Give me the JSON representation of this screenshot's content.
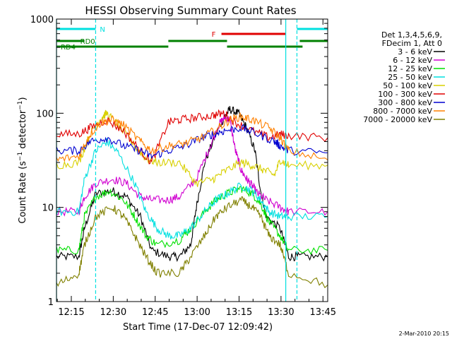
{
  "chart_data": {
    "type": "line",
    "title": "HESSI Observing Summary Count Rates",
    "xlabel": "Start Time (17-Dec-07 12:09:42)",
    "ylabel_prefix": "Count Rate (s",
    "ylabel_exp1": "−1",
    "ylabel_mid": " detector",
    "ylabel_exp2": "−1",
    "ylabel_suffix": ")",
    "y_scale": "log",
    "ylim": [
      1,
      1000
    ],
    "xlim_min": [
      0,
      97
    ],
    "x_ticks": [
      {
        "min": 5.3,
        "label": "12:15"
      },
      {
        "min": 20.3,
        "label": "12:30"
      },
      {
        "min": 35.3,
        "label": "12:45"
      },
      {
        "min": 50.3,
        "label": "13:00"
      },
      {
        "min": 65.3,
        "label": "13:15"
      },
      {
        "min": 80.3,
        "label": "13:30"
      },
      {
        "min": 95.3,
        "label": "13:45"
      }
    ],
    "y_ticks": [
      {
        "value": 1,
        "label": "1"
      },
      {
        "value": 10,
        "label": "10"
      },
      {
        "value": 100,
        "label": "100"
      },
      {
        "value": 1000,
        "label": "1000"
      }
    ],
    "legend_header": [
      "Det 1,3,4,5,6,9,",
      "FDecim 1, Att 0"
    ],
    "series": [
      {
        "name": "3 - 6 keV",
        "color": "#000000",
        "points": [
          [
            0,
            3
          ],
          [
            8,
            3
          ],
          [
            10,
            6
          ],
          [
            14,
            14
          ],
          [
            20,
            15
          ],
          [
            25,
            13
          ],
          [
            30,
            8
          ],
          [
            34,
            3.5
          ],
          [
            40,
            3
          ],
          [
            44,
            3
          ],
          [
            48,
            4
          ],
          [
            50,
            10
          ],
          [
            53,
            30
          ],
          [
            57,
            60
          ],
          [
            60,
            90
          ],
          [
            62,
            110
          ],
          [
            65,
            100
          ],
          [
            68,
            70
          ],
          [
            71,
            40
          ],
          [
            73,
            15
          ],
          [
            75,
            8
          ],
          [
            80,
            6
          ],
          [
            83,
            3
          ],
          [
            87,
            3
          ],
          [
            97,
            3
          ]
        ]
      },
      {
        "name": "6 - 12 keV",
        "color": "#d000d0",
        "points": [
          [
            0,
            9
          ],
          [
            8,
            9
          ],
          [
            10,
            13
          ],
          [
            14,
            18
          ],
          [
            20,
            20
          ],
          [
            25,
            18
          ],
          [
            30,
            13
          ],
          [
            34,
            12
          ],
          [
            40,
            12
          ],
          [
            44,
            13
          ],
          [
            50,
            20
          ],
          [
            55,
            45
          ],
          [
            58,
            75
          ],
          [
            60,
            90
          ],
          [
            62,
            85
          ],
          [
            64,
            40
          ],
          [
            66,
            25
          ],
          [
            68,
            20
          ],
          [
            70,
            17
          ],
          [
            72,
            14
          ],
          [
            75,
            12
          ],
          [
            80,
            10
          ],
          [
            83,
            9
          ],
          [
            97,
            9
          ]
        ]
      },
      {
        "name": "12 - 25 keV",
        "color": "#00e000",
        "points": [
          [
            0,
            3.5
          ],
          [
            8,
            3.5
          ],
          [
            10,
            8
          ],
          [
            14,
            13
          ],
          [
            19,
            15
          ],
          [
            24,
            12
          ],
          [
            28,
            8
          ],
          [
            32,
            5
          ],
          [
            36,
            4
          ],
          [
            44,
            4.5
          ],
          [
            48,
            6
          ],
          [
            53,
            9
          ],
          [
            57,
            12
          ],
          [
            61,
            14
          ],
          [
            66,
            16
          ],
          [
            70,
            14
          ],
          [
            73,
            11
          ],
          [
            76,
            7
          ],
          [
            80,
            5
          ],
          [
            83,
            3.5
          ],
          [
            97,
            3.5
          ]
        ]
      },
      {
        "name": "25 - 50 keV",
        "color": "#00e0e0",
        "points": [
          [
            0,
            9
          ],
          [
            8,
            9
          ],
          [
            10,
            20
          ],
          [
            14,
            40
          ],
          [
            18,
            50
          ],
          [
            22,
            38
          ],
          [
            28,
            18
          ],
          [
            32,
            9
          ],
          [
            36,
            6
          ],
          [
            40,
            5
          ],
          [
            44,
            5
          ],
          [
            48,
            6
          ],
          [
            53,
            9
          ],
          [
            57,
            12
          ],
          [
            61,
            14
          ],
          [
            66,
            17
          ],
          [
            70,
            15
          ],
          [
            73,
            12
          ],
          [
            76,
            9
          ],
          [
            80,
            8
          ],
          [
            83,
            8
          ],
          [
            97,
            8
          ]
        ]
      },
      {
        "name": "50 - 100 keV",
        "color": "#d8d000",
        "points": [
          [
            0,
            28
          ],
          [
            8,
            30
          ],
          [
            12,
            60
          ],
          [
            16,
            90
          ],
          [
            18,
            100
          ],
          [
            22,
            75
          ],
          [
            28,
            45
          ],
          [
            32,
            33
          ],
          [
            36,
            30
          ],
          [
            44,
            30
          ],
          [
            50,
            18
          ],
          [
            56,
            20
          ],
          [
            60,
            24
          ],
          [
            66,
            30
          ],
          [
            70,
            28
          ],
          [
            74,
            25
          ],
          [
            78,
            22
          ],
          [
            80,
            32
          ],
          [
            83,
            28
          ],
          [
            97,
            28
          ]
        ]
      },
      {
        "name": "100 - 300 keV",
        "color": "#e00000",
        "points": [
          [
            0,
            60
          ],
          [
            8,
            60
          ],
          [
            12,
            70
          ],
          [
            18,
            85
          ],
          [
            24,
            65
          ],
          [
            30,
            40
          ],
          [
            34,
            30
          ],
          [
            40,
            80
          ],
          [
            44,
            85
          ],
          [
            50,
            90
          ],
          [
            56,
            95
          ],
          [
            60,
            100
          ],
          [
            64,
            80
          ],
          [
            70,
            65
          ],
          [
            76,
            55
          ],
          [
            80,
            60
          ],
          [
            83,
            58
          ],
          [
            97,
            55
          ]
        ]
      },
      {
        "name": "300 - 800 keV",
        "color": "#0000d0",
        "points": [
          [
            0,
            40
          ],
          [
            8,
            40
          ],
          [
            12,
            50
          ],
          [
            18,
            55
          ],
          [
            24,
            45
          ],
          [
            30,
            40
          ],
          [
            34,
            35
          ],
          [
            40,
            40
          ],
          [
            46,
            45
          ],
          [
            52,
            55
          ],
          [
            56,
            60
          ],
          [
            60,
            65
          ],
          [
            66,
            70
          ],
          [
            72,
            60
          ],
          [
            78,
            50
          ],
          [
            80,
            45
          ],
          [
            83,
            40
          ],
          [
            97,
            38
          ]
        ]
      },
      {
        "name": "800 - 7000 keV",
        "color": "#ff8000",
        "points": [
          [
            0,
            32
          ],
          [
            8,
            35
          ],
          [
            12,
            60
          ],
          [
            16,
            80
          ],
          [
            20,
            85
          ],
          [
            24,
            75
          ],
          [
            30,
            50
          ],
          [
            34,
            40
          ],
          [
            40,
            45
          ],
          [
            46,
            48
          ],
          [
            52,
            55
          ],
          [
            58,
            70
          ],
          [
            62,
            85
          ],
          [
            66,
            92
          ],
          [
            70,
            85
          ],
          [
            76,
            70
          ],
          [
            80,
            55
          ],
          [
            83,
            40
          ],
          [
            97,
            32
          ]
        ]
      },
      {
        "name": "7000 - 20000 keV",
        "color": "#808000",
        "points": [
          [
            0,
            1.5
          ],
          [
            8,
            2
          ],
          [
            10,
            4
          ],
          [
            14,
            8
          ],
          [
            20,
            10
          ],
          [
            24,
            8
          ],
          [
            28,
            5
          ],
          [
            32,
            3
          ],
          [
            36,
            2
          ],
          [
            44,
            2
          ],
          [
            48,
            3
          ],
          [
            53,
            5
          ],
          [
            57,
            8
          ],
          [
            61,
            10
          ],
          [
            66,
            12
          ],
          [
            70,
            10
          ],
          [
            73,
            8
          ],
          [
            76,
            5
          ],
          [
            80,
            4
          ],
          [
            83,
            2
          ],
          [
            97,
            1.5
          ]
        ]
      }
    ],
    "vertical_markers": [
      {
        "min": 0,
        "color": "#00e0e0",
        "style": "solid"
      },
      {
        "min": 14,
        "color": "#00e0e0",
        "style": "dashed"
      },
      {
        "min": 82,
        "color": "#00e0e0",
        "style": "solid"
      },
      {
        "min": 86,
        "color": "#00e0e0",
        "style": "dashed"
      }
    ],
    "flag_bars": [
      {
        "label": "N",
        "color": "#00e0e0",
        "segments": [
          [
            0,
            14
          ],
          [
            86,
            97
          ]
        ],
        "level": 1
      },
      {
        "label": "F",
        "color": "#e00000",
        "segments": [
          [
            59,
            82
          ]
        ],
        "level": 2
      },
      {
        "label": "RD0",
        "color": "#008000",
        "segments": [
          [
            0,
            10
          ],
          [
            40,
            61
          ],
          [
            87,
            97
          ]
        ],
        "level": 3
      },
      {
        "label": "RD4",
        "color": "#008000",
        "segments": [
          [
            0,
            12
          ],
          [
            11,
            40
          ],
          [
            61,
            88
          ]
        ],
        "level": 4
      }
    ]
  },
  "footer": {
    "date": "2-Mar-2010 20:15"
  }
}
